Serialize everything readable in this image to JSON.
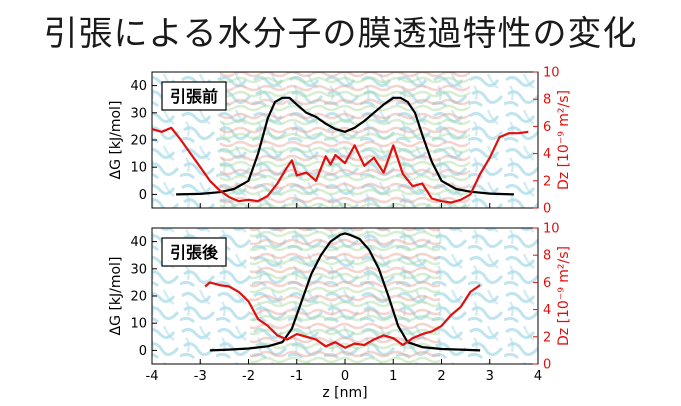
{
  "title": "引張による水分子の膜透過特性の変化",
  "chart_data": [
    {
      "type": "line",
      "panel_label": "引張前",
      "xlabel": "z [nm]",
      "ylabel": "ΔG [kJ/mol]",
      "ylabel_right": "Dz [10⁻⁹ m²/s]",
      "xlim": [
        -4,
        4
      ],
      "ylim": [
        -5,
        45
      ],
      "ylim_right": [
        0,
        10
      ],
      "yticks": [
        "0",
        "10",
        "20",
        "30",
        "40"
      ],
      "yticks_right": [
        "0",
        "2",
        "4",
        "6",
        "8",
        "10"
      ],
      "series": [
        {
          "axis": "left",
          "color": "#000000",
          "x": [
            -3.5,
            -3.0,
            -2.6,
            -2.3,
            -2.0,
            -1.8,
            -1.6,
            -1.45,
            -1.3,
            -1.15,
            -1.0,
            -0.8,
            -0.6,
            -0.4,
            -0.2,
            0.0,
            0.2,
            0.4,
            0.6,
            0.8,
            1.0,
            1.15,
            1.3,
            1.45,
            1.6,
            1.8,
            2.0,
            2.3,
            2.6,
            3.0,
            3.5
          ],
          "y": [
            0,
            0.2,
            0.8,
            2,
            5,
            15,
            28,
            34,
            35.5,
            35.5,
            33,
            30,
            28.5,
            26,
            24,
            23,
            24.5,
            27,
            30,
            33,
            35.5,
            35.5,
            34,
            30,
            22,
            12,
            5,
            2,
            1,
            0.3,
            0
          ]
        },
        {
          "axis": "right",
          "color": "#e01010",
          "x": [
            -4.0,
            -3.8,
            -3.6,
            -3.4,
            -3.2,
            -3.0,
            -2.8,
            -2.6,
            -2.4,
            -2.2,
            -2.0,
            -1.8,
            -1.6,
            -1.4,
            -1.2,
            -1.1,
            -1.0,
            -0.8,
            -0.6,
            -0.4,
            -0.3,
            -0.2,
            0.0,
            0.2,
            0.4,
            0.6,
            0.8,
            1.0,
            1.2,
            1.4,
            1.6,
            1.8,
            2.0,
            2.2,
            2.4,
            2.6,
            2.8,
            3.0,
            3.2,
            3.4,
            3.6,
            3.8
          ],
          "y": [
            5.8,
            5.6,
            5.9,
            5.0,
            4.0,
            3.0,
            2.0,
            1.3,
            0.8,
            0.5,
            0.6,
            0.5,
            0.9,
            1.8,
            3.0,
            3.5,
            2.4,
            2.6,
            2.0,
            3.8,
            3.2,
            3.9,
            3.3,
            4.6,
            3.1,
            3.7,
            2.6,
            4.6,
            2.5,
            1.6,
            1.8,
            0.7,
            0.5,
            0.4,
            0.6,
            1.0,
            2.5,
            3.7,
            5.2,
            5.5,
            5.5,
            5.6
          ]
        }
      ]
    },
    {
      "type": "line",
      "panel_label": "引張後",
      "xlabel": "z [nm]",
      "ylabel": "ΔG [kJ/mol]",
      "ylabel_right": "Dz [10⁻⁹ m²/s]",
      "xlim": [
        -4,
        4
      ],
      "ylim": [
        -5,
        45
      ],
      "ylim_right": [
        0,
        10
      ],
      "xticks": [
        "-4",
        "-3",
        "-2",
        "-1",
        "0",
        "1",
        "2",
        "3",
        "4"
      ],
      "yticks": [
        "0",
        "10",
        "20",
        "30",
        "40"
      ],
      "yticks_right": [
        "0",
        "2",
        "4",
        "6",
        "8",
        "10"
      ],
      "series": [
        {
          "axis": "left",
          "color": "#000000",
          "x": [
            -2.8,
            -2.4,
            -2.0,
            -1.6,
            -1.3,
            -1.1,
            -0.9,
            -0.7,
            -0.5,
            -0.3,
            -0.1,
            0.0,
            0.1,
            0.3,
            0.5,
            0.7,
            0.9,
            1.1,
            1.3,
            1.6,
            2.0,
            2.4,
            2.8
          ],
          "y": [
            0,
            0.3,
            0.7,
            1.5,
            3,
            8,
            18,
            28,
            35,
            40,
            42.5,
            43,
            42.5,
            41,
            37,
            30,
            20,
            9,
            3,
            1.2,
            0.5,
            0.3,
            0
          ],
          "name": ""
        },
        {
          "axis": "right",
          "color": "#e01010",
          "x": [
            -2.9,
            -2.8,
            -2.6,
            -2.4,
            -2.2,
            -2.0,
            -1.8,
            -1.6,
            -1.4,
            -1.2,
            -1.0,
            -0.8,
            -0.6,
            -0.4,
            -0.2,
            0.0,
            0.2,
            0.4,
            0.6,
            0.8,
            1.0,
            1.2,
            1.4,
            1.6,
            1.8,
            2.0,
            2.2,
            2.4,
            2.6,
            2.8
          ],
          "y": [
            5.7,
            6.0,
            5.8,
            5.7,
            5.3,
            4.6,
            3.3,
            2.8,
            2.1,
            1.8,
            2.2,
            2.0,
            1.8,
            1.3,
            1.6,
            1.2,
            1.5,
            1.4,
            1.8,
            2.1,
            1.9,
            1.4,
            1.9,
            2.2,
            2.4,
            2.8,
            3.6,
            4.2,
            5.3,
            5.8
          ]
        }
      ]
    }
  ]
}
